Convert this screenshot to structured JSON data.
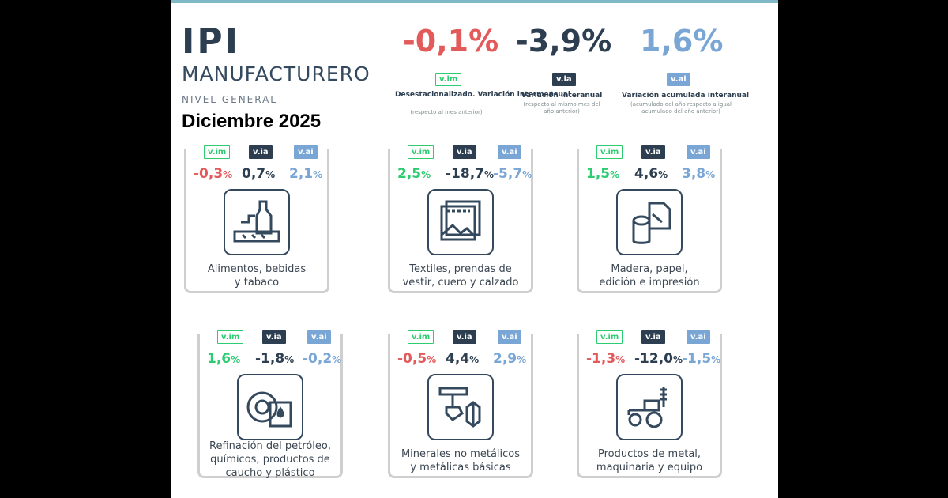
{
  "header": {
    "title": "IPI",
    "subtitle": "MANUFACTURERO",
    "level": "NIVEL GENERAL",
    "date": "Diciembre 2025"
  },
  "summary": [
    {
      "value": "-0,1%",
      "tag": "v.im",
      "label": "Desestacionalizado. Variación intermensual",
      "sub": "(respecto al mes anterior)"
    },
    {
      "value": "-3,9%",
      "tag": "v.ia",
      "label": "Variación interanual",
      "sub": "(respecto al mismo mes del año anterior)"
    },
    {
      "value": "1,6%",
      "tag": "v.ai",
      "label": "Variación acumulada interanual",
      "sub": "(acumulado del año respecto a igual acumulado del año anterior)"
    }
  ],
  "tags": {
    "im": "v.im",
    "ia": "v.ia",
    "ai": "v.ai"
  },
  "sectors": [
    {
      "im": "-0,3",
      "ia": "0,7",
      "ai": "2,1",
      "label1": "Alimentos, bebidas",
      "label2": "y tabaco",
      "label3": "",
      "icon": "food-icon"
    },
    {
      "im": "2,5",
      "ia": "-18,7",
      "ai": "-5,7",
      "label1": "Textiles, prendas de",
      "label2": "vestir, cuero y calzado",
      "label3": "",
      "icon": "textile-icon"
    },
    {
      "im": "1,5",
      "ia": "4,6",
      "ai": "3,8",
      "label1": "Madera, papel,",
      "label2": "edición e impresión",
      "label3": "",
      "icon": "wood-paper-icon"
    },
    {
      "im": "1,6",
      "ia": "-1,8",
      "ai": "-0,2",
      "label1": "Refinación del petróleo,",
      "label2": "químicos, productos de",
      "label3": "caucho y plástico",
      "icon": "oil-tire-icon"
    },
    {
      "im": "-0,5",
      "ia": "4,4",
      "ai": "2,9",
      "label1": "Minerales no metálicos",
      "label2": "y metálicas básicas",
      "label3": "",
      "icon": "minerals-icon"
    },
    {
      "im": "-1,3",
      "ia": "-12,0",
      "ai": "-1,5",
      "label1": "Productos de metal,",
      "label2": "maquinaria y equipo",
      "label3": "",
      "icon": "tractor-icon"
    }
  ],
  "pct": "%",
  "colors": {
    "negative": "#e25a5a",
    "ia": "#2c3e50",
    "ai": "#7aa6d6",
    "im_tag": "#2ecc71"
  }
}
